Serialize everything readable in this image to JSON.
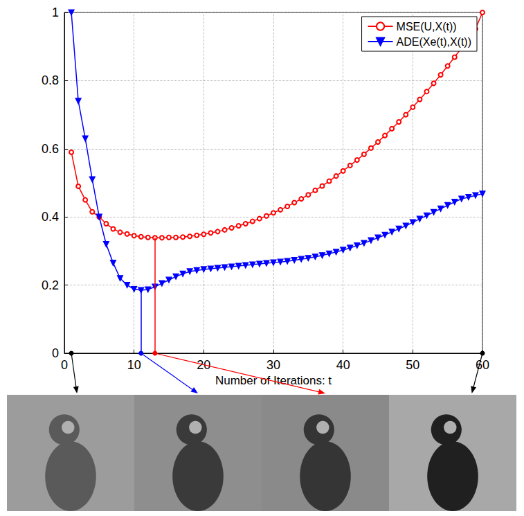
{
  "chart_data": {
    "type": "line",
    "x_label": "Number of Iterations: t",
    "x": [
      1,
      2,
      3,
      4,
      5,
      6,
      7,
      8,
      9,
      10,
      11,
      12,
      13,
      14,
      15,
      16,
      17,
      18,
      19,
      20,
      21,
      22,
      23,
      24,
      25,
      26,
      27,
      28,
      29,
      30,
      31,
      32,
      33,
      34,
      35,
      36,
      37,
      38,
      39,
      40,
      41,
      42,
      43,
      44,
      45,
      46,
      47,
      48,
      49,
      50,
      51,
      52,
      53,
      54,
      55,
      56,
      57,
      58,
      59,
      60
    ],
    "series": [
      {
        "name": "MSE(U,X(t))",
        "color": "#ff0000",
        "marker": "circle",
        "line_style": "solid",
        "values": [
          0.59,
          0.49,
          0.45,
          0.415,
          0.4,
          0.38,
          0.365,
          0.355,
          0.35,
          0.345,
          0.342,
          0.34,
          0.339,
          0.339,
          0.34,
          0.34,
          0.341,
          0.343,
          0.346,
          0.349,
          0.353,
          0.357,
          0.362,
          0.368,
          0.374,
          0.38,
          0.387,
          0.395,
          0.403,
          0.412,
          0.421,
          0.431,
          0.442,
          0.453,
          0.465,
          0.478,
          0.491,
          0.505,
          0.52,
          0.535,
          0.551,
          0.567,
          0.584,
          0.602,
          0.62,
          0.639,
          0.659,
          0.679,
          0.7,
          0.722,
          0.745,
          0.768,
          0.792,
          0.817,
          0.843,
          0.869,
          0.896,
          0.924,
          0.952,
          1.0
        ]
      },
      {
        "name": "ADE(Xe(t),X(t))",
        "color": "#0000ff",
        "marker": "triangle-down",
        "line_style": "solid",
        "values": [
          1.0,
          0.74,
          0.63,
          0.51,
          0.4,
          0.32,
          0.265,
          0.22,
          0.2,
          0.188,
          0.185,
          0.187,
          0.195,
          0.205,
          0.215,
          0.225,
          0.233,
          0.24,
          0.243,
          0.246,
          0.248,
          0.25,
          0.252,
          0.254,
          0.256,
          0.258,
          0.26,
          0.262,
          0.264,
          0.266,
          0.268,
          0.27,
          0.273,
          0.276,
          0.279,
          0.283,
          0.287,
          0.292,
          0.297,
          0.303,
          0.309,
          0.316,
          0.323,
          0.331,
          0.339,
          0.347,
          0.356,
          0.365,
          0.374,
          0.384,
          0.394,
          0.404,
          0.414,
          0.424,
          0.434,
          0.444,
          0.453,
          0.458,
          0.463,
          0.468
        ]
      }
    ],
    "xlim": [
      0,
      60
    ],
    "xticks": [
      0,
      10,
      20,
      30,
      40,
      50,
      60
    ],
    "ylim": [
      0,
      1
    ],
    "yticks": [
      0,
      0.2,
      0.4,
      0.6,
      0.8,
      1
    ],
    "grid": true,
    "legend": "upper right"
  }
}
